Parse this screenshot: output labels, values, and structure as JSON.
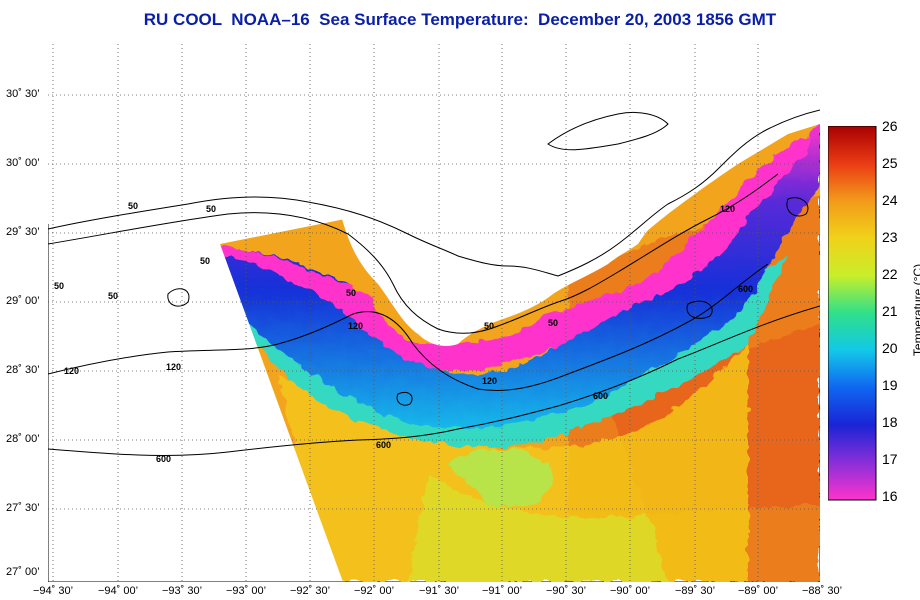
{
  "title": "RU COOL  NOAA–16  Sea Surface Temperature:  December 20, 2003 1856 GMT",
  "colorbar": {
    "label": "Temperature (°C)",
    "ticks": [
      "26",
      "25",
      "24",
      "23",
      "22",
      "21",
      "20",
      "19",
      "18",
      "17",
      "16"
    ],
    "min": 16,
    "max": 26,
    "colors": [
      "#ff33cc",
      "#8a2fd9",
      "#1a24d6",
      "#0f66f0",
      "#12c8e8",
      "#2fe08a",
      "#c9ee2a",
      "#f0d21a",
      "#f39a1a",
      "#ea3b14",
      "#a80000"
    ]
  },
  "y_ticks": [
    "30˚ 30’",
    "30˚ 00’",
    "29˚ 30’",
    "29˚ 00’",
    "28˚ 30’",
    "28˚ 00’",
    "27˚ 30’",
    "27˚ 00’"
  ],
  "x_ticks": [
    "−94˚ 30’",
    "−94˚ 00’",
    "−93˚ 30’",
    "−93˚ 00’",
    "−92˚ 30’",
    "−92˚ 00’",
    "−91˚ 30’",
    "−91˚ 00’",
    "−90˚ 30’",
    "−90˚ 00’",
    "−89˚ 30’",
    "−89˚ 00’",
    "−88˚ 30’"
  ],
  "contour_labels": [
    "50",
    "50",
    "50",
    "50",
    "50",
    "50",
    "50",
    "50",
    "120",
    "120",
    "120",
    "120",
    "120",
    "600",
    "600",
    "600",
    "600"
  ]
}
